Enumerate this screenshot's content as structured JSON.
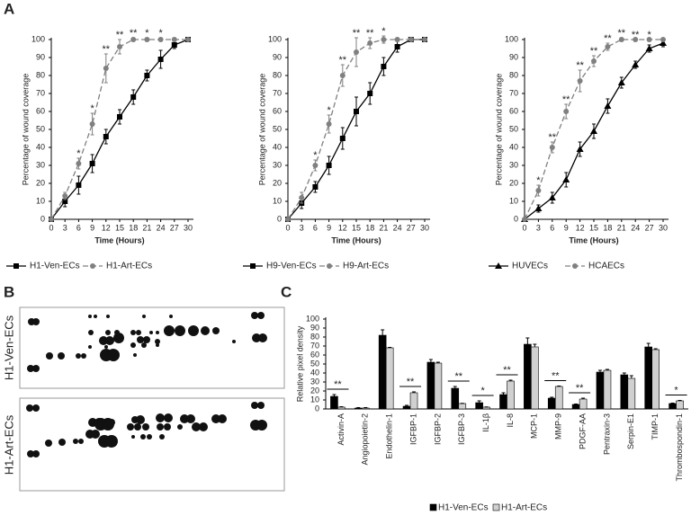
{
  "panels": [
    "A",
    "B",
    "C"
  ],
  "blot": {
    "labels": [
      "H1-Ven-ECs",
      "H1-Art-ECs"
    ]
  },
  "chart_data": [
    {
      "type": "line",
      "xlabel": "Time (Hours)",
      "ylabel": "Percentage of wound coverage",
      "x": [
        0,
        3,
        6,
        9,
        12,
        15,
        18,
        21,
        24,
        27,
        30
      ],
      "xlim": [
        0,
        30
      ],
      "xticks": [
        0,
        3,
        6,
        9,
        12,
        15,
        18,
        21,
        24,
        27,
        30
      ],
      "ylim": [
        0,
        100
      ],
      "yticks": [
        0,
        10,
        20,
        30,
        40,
        50,
        60,
        70,
        80,
        90,
        100
      ],
      "series": [
        {
          "name": "H1-Ven-ECs",
          "color": "#000000",
          "marker": "square",
          "dashed": false,
          "values": [
            0,
            10,
            19,
            31,
            46,
            57,
            68,
            80,
            89,
            97,
            100
          ],
          "errors": [
            0,
            3,
            5,
            5,
            4,
            4,
            4,
            3,
            5,
            2,
            1
          ]
        },
        {
          "name": "H1-Art-ECs",
          "color": "#808080",
          "marker": "circle",
          "dashed": true,
          "values": [
            0,
            13,
            31,
            53,
            84,
            96,
            100,
            100,
            100,
            100,
            100
          ],
          "errors": [
            0,
            2,
            3,
            6,
            8,
            4,
            1,
            1,
            1,
            1,
            0
          ]
        }
      ],
      "stars": [
        null,
        null,
        "*",
        "*",
        "**",
        "**",
        "**",
        "*",
        "*",
        null,
        null
      ]
    },
    {
      "type": "line",
      "xlabel": "Time (Hours)",
      "ylabel": "Percentage of wound coverage",
      "x": [
        0,
        3,
        6,
        9,
        12,
        15,
        18,
        21,
        24,
        27,
        30
      ],
      "xlim": [
        0,
        30
      ],
      "xticks": [
        0,
        3,
        6,
        9,
        12,
        15,
        18,
        21,
        24,
        27,
        30
      ],
      "ylim": [
        0,
        100
      ],
      "yticks": [
        0,
        10,
        20,
        30,
        40,
        50,
        60,
        70,
        80,
        90,
        100
      ],
      "series": [
        {
          "name": "H9-Ven-ECs",
          "color": "#000000",
          "marker": "square",
          "dashed": false,
          "values": [
            0,
            9,
            18,
            30,
            45,
            60,
            70,
            85,
            96,
            100,
            100
          ],
          "errors": [
            0,
            3,
            3,
            5,
            6,
            8,
            6,
            5,
            3,
            1,
            0
          ]
        },
        {
          "name": "H9-Art-ECs",
          "color": "#808080",
          "marker": "circle",
          "dashed": true,
          "values": [
            0,
            12,
            30,
            53,
            80,
            93,
            98,
            100,
            100,
            100,
            100
          ],
          "errors": [
            0,
            3,
            3,
            5,
            6,
            8,
            3,
            2,
            1,
            0,
            0
          ]
        }
      ],
      "stars": [
        null,
        null,
        "*",
        "*",
        "**",
        "**",
        "**",
        "*",
        null,
        null,
        null
      ]
    },
    {
      "type": "line",
      "xlabel": "Time (Hours)",
      "ylabel": "Percentage of wound coverage",
      "x": [
        0,
        3,
        6,
        9,
        12,
        15,
        18,
        21,
        24,
        27,
        30
      ],
      "xlim": [
        0,
        30
      ],
      "xticks": [
        0,
        3,
        6,
        9,
        12,
        15,
        18,
        21,
        24,
        27,
        30
      ],
      "ylim": [
        0,
        100
      ],
      "yticks": [
        0,
        10,
        20,
        30,
        40,
        50,
        60,
        70,
        80,
        90,
        100
      ],
      "series": [
        {
          "name": "HUVECs",
          "color": "#000000",
          "marker": "triangle",
          "dashed": false,
          "values": [
            0,
            6,
            12,
            22,
            39,
            49,
            63,
            76,
            86,
            95,
            98
          ],
          "errors": [
            0,
            2,
            3,
            4,
            4,
            4,
            4,
            3,
            2,
            2,
            2
          ]
        },
        {
          "name": "HCAECs",
          "color": "#808080",
          "marker": "circle",
          "dashed": true,
          "values": [
            0,
            16,
            40,
            60,
            77,
            88,
            96,
            100,
            100,
            100,
            100
          ],
          "errors": [
            0,
            3,
            3,
            4,
            6,
            3,
            2,
            1,
            0,
            0,
            0
          ]
        }
      ],
      "stars": [
        null,
        "*",
        "**",
        "**",
        "**",
        "**",
        "**",
        "**",
        "**",
        "*",
        null
      ]
    },
    {
      "type": "bar",
      "ylabel": "Relative pixel density",
      "categories": [
        "Activin-A",
        "Angiopoietin-2",
        "Endothelin-1",
        "IGFBP-1",
        "IGFBP-2",
        "IGFBP-3",
        "IL-1β",
        "IL-8",
        "MCP-1",
        "MMP-9",
        "PDGF-AA",
        "Pentraxin-3",
        "Serpin-E1",
        "TIMP-1",
        "Thrombospondin-1"
      ],
      "ylim": [
        0,
        100
      ],
      "yticks": [
        0,
        10,
        20,
        30,
        40,
        50,
        60,
        70,
        80,
        90,
        100
      ],
      "series": [
        {
          "name": "H1-Ven-ECs",
          "color": "#000000",
          "values": [
            14,
            1,
            82,
            3,
            52,
            23,
            7,
            16,
            72,
            12,
            5,
            41,
            38,
            69,
            6
          ],
          "errors": [
            2,
            0.5,
            6,
            1,
            3,
            2,
            2,
            2,
            7,
            1,
            0.5,
            2,
            2,
            4,
            0.5
          ]
        },
        {
          "name": "H1-Art-ECs",
          "color": "#d0d0d0",
          "values": [
            2,
            1,
            68,
            18,
            51,
            6,
            2,
            31,
            69,
            25,
            11,
            43,
            34,
            66,
            9
          ],
          "errors": [
            0.5,
            0.5,
            0.5,
            1,
            1,
            0.3,
            0.3,
            1,
            3,
            0.5,
            1,
            1,
            3,
            1,
            0.5
          ]
        }
      ],
      "stars": [
        "**",
        null,
        null,
        "**",
        null,
        "**",
        "*",
        "**",
        null,
        "**",
        "**",
        null,
        null,
        null,
        "*"
      ]
    }
  ]
}
